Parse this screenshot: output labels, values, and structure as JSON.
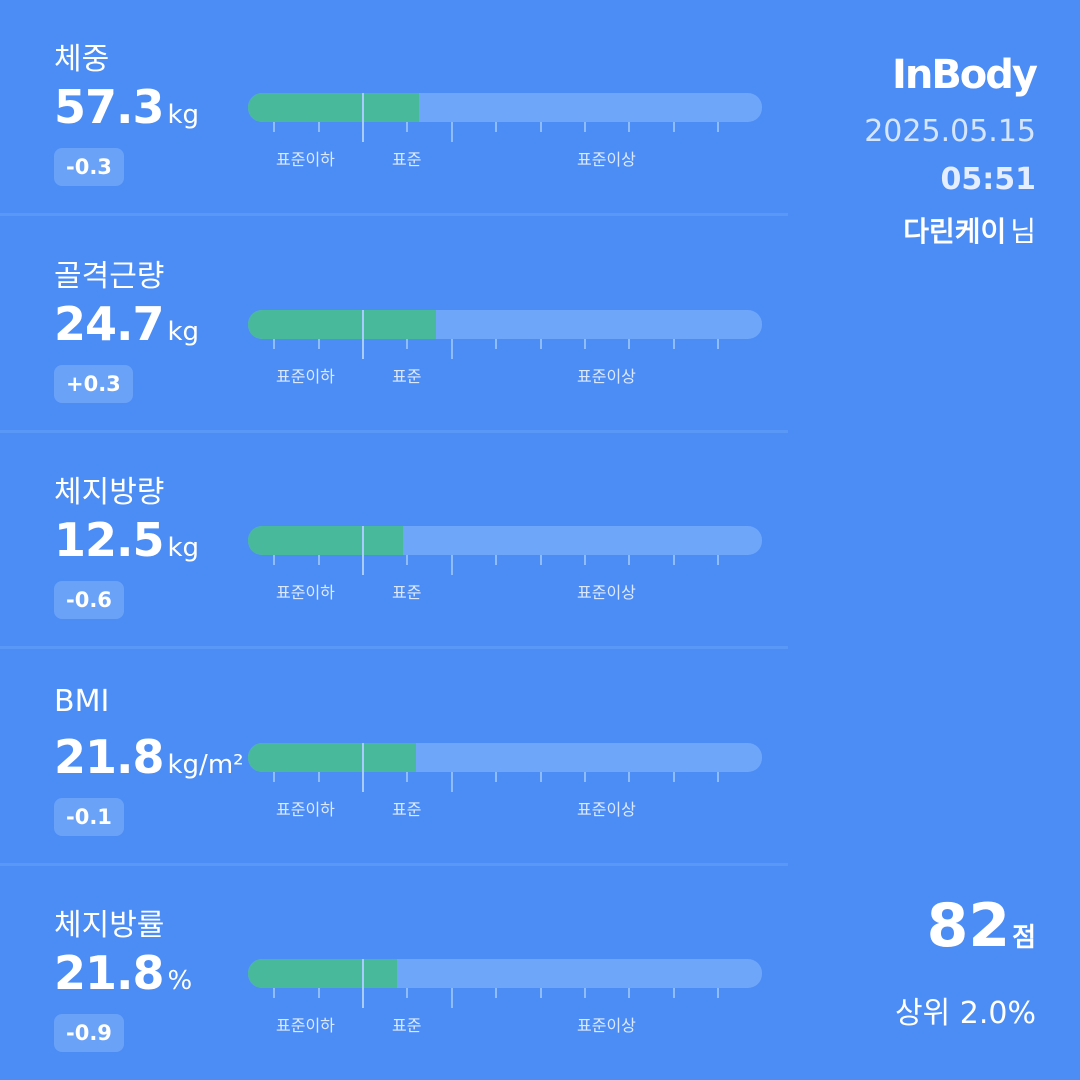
{
  "metrics": [
    {
      "label": "체중",
      "value": "57.3",
      "unit": "kg",
      "delta": "-0.3",
      "fill_fraction": 0.333
    },
    {
      "label": "골격근량",
      "value": "24.7",
      "unit": "kg",
      "delta": "+0.3",
      "fill_fraction": 0.366
    },
    {
      "label": "체지방량",
      "value": "12.5",
      "unit": "kg",
      "delta": "-0.6",
      "fill_fraction": 0.302
    },
    {
      "label": "BMI",
      "value": "21.8",
      "unit": "kg/m²",
      "delta": "-0.1",
      "fill_fraction": 0.327
    },
    {
      "label": "체지방률",
      "value": "21.8",
      "unit": "%",
      "delta": "-0.9",
      "fill_fraction": 0.29
    }
  ],
  "zones": {
    "below": "표준이하",
    "standard": "표준",
    "above": "표준이상"
  },
  "header": {
    "logo": "InBody",
    "date": "2025.05.15",
    "time": "05:51",
    "user_name": "다린케이",
    "user_suffix": "님"
  },
  "score": {
    "value": "82",
    "unit": "점",
    "rank": "상위 2.0%"
  },
  "colors": {
    "background": "#4c8cf5",
    "bar_track": "#6ea6fa",
    "bar_fill": "#49b99b",
    "delta_badge": "#6aa2f8"
  }
}
